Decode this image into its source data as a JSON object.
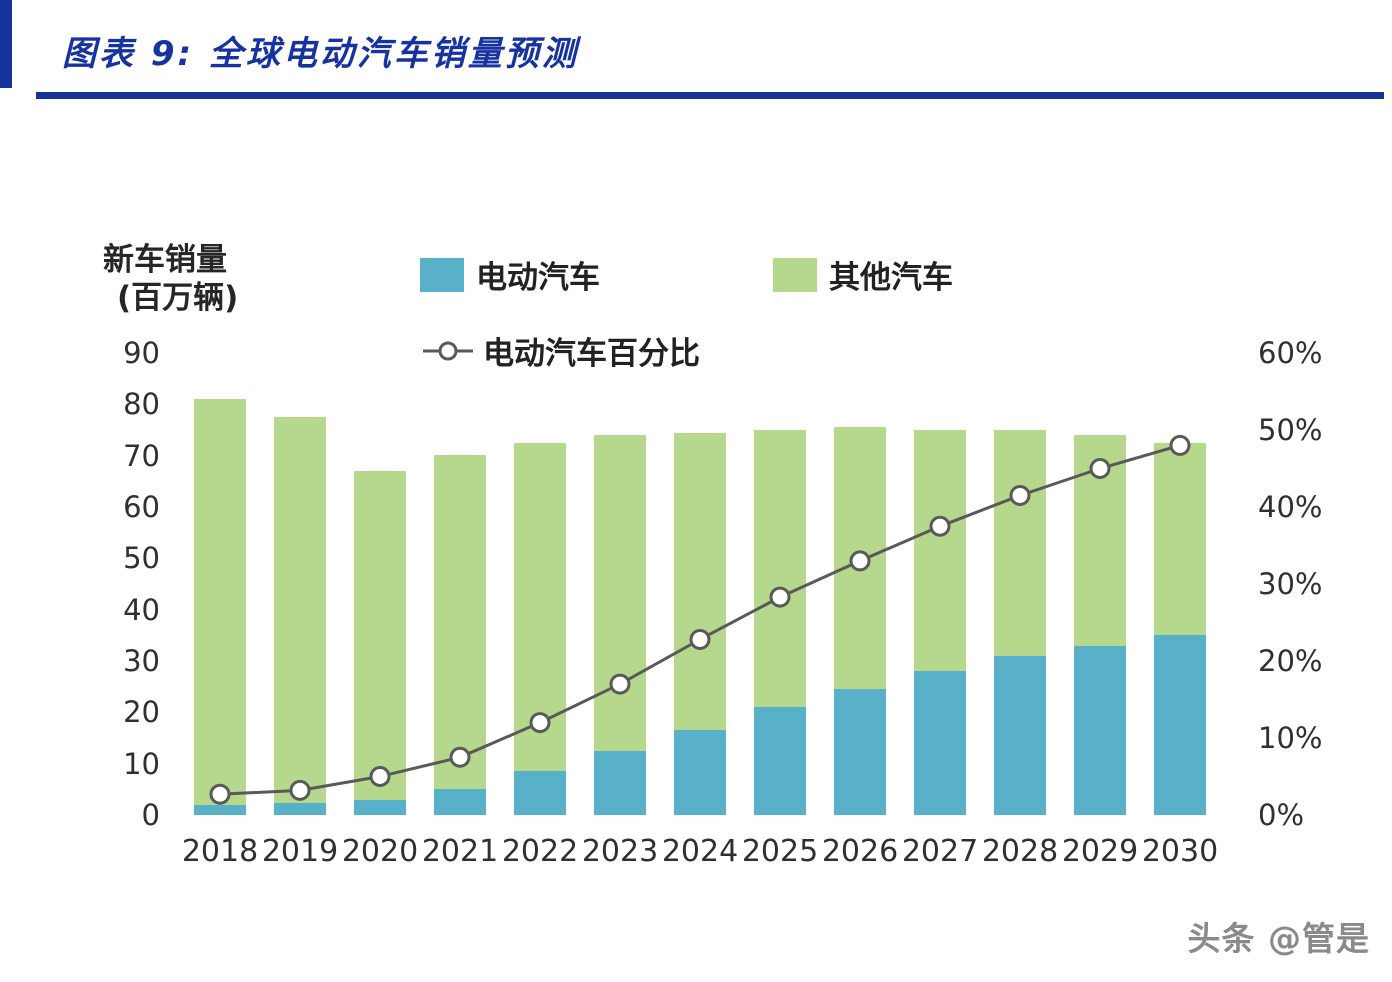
{
  "header": {
    "title": "图表 9:  全球电动汽车销量预测",
    "accent_color": "#16339c"
  },
  "footer": {
    "watermark": "头条 @管是"
  },
  "chart_data": {
    "type": "bar",
    "stacked": true,
    "legend_position": "top",
    "grid": false,
    "x_categories": [
      "2018",
      "2019",
      "2020",
      "2021",
      "2022",
      "2023",
      "2024",
      "2025",
      "2026",
      "2027",
      "2028",
      "2029",
      "2030"
    ],
    "left_axis": {
      "title_line1": "新车销量",
      "title_line2": "(百万辆)",
      "min": 0,
      "max": 90,
      "ticks": [
        0,
        10,
        20,
        30,
        40,
        50,
        60,
        70,
        80,
        90
      ]
    },
    "right_axis": {
      "min": 0,
      "max": 60,
      "ticks": [
        "0%",
        "10%",
        "20%",
        "30%",
        "40%",
        "50%",
        "60%"
      ]
    },
    "series": [
      {
        "name": "电动汽车",
        "type": "bar",
        "color": "#58b1c9",
        "values": [
          2,
          2.3,
          3,
          5,
          8.5,
          12.5,
          16.5,
          21,
          24.5,
          28,
          31,
          33,
          35
        ]
      },
      {
        "name": "其他汽车",
        "type": "bar",
        "color": "#b5d88c",
        "values": [
          79,
          75.2,
          64,
          65.2,
          64,
          61.5,
          58,
          54,
          51,
          47,
          44,
          41,
          37.5
        ]
      }
    ],
    "line_series": {
      "name": "电动汽车百分比",
      "type": "line",
      "axis": "right",
      "color": "#595959",
      "marker": "open-circle",
      "values_percent": [
        2.7,
        3.2,
        5,
        7.5,
        12,
        17,
        22.8,
        28.3,
        33,
        37.5,
        41.5,
        45,
        48
      ]
    }
  }
}
